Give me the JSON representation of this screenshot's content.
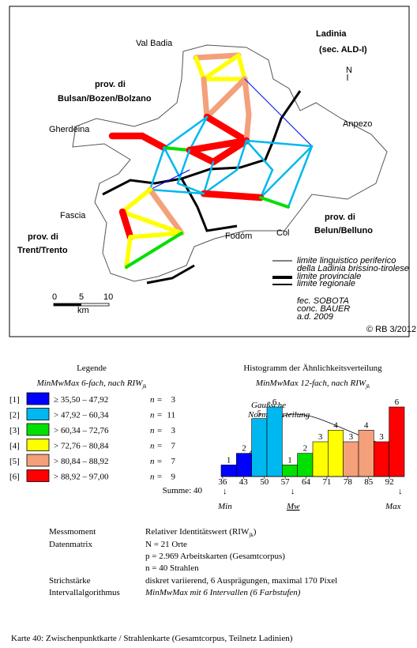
{
  "map": {
    "title": "Ladinia",
    "subtitle": "(sec. ALD-I)",
    "north": "N",
    "places": [
      "Val Badia",
      "Gherdëina",
      "Anpezo",
      "Fascia",
      "Fodóm",
      "Col"
    ],
    "provinces": [
      [
        "prov. di",
        "Bulsan/Bozen/Bolzano"
      ],
      [
        "prov. di",
        "Trent/Trento"
      ],
      [
        "prov. di",
        "Belun/Belluno"
      ]
    ],
    "key": [
      "limite linguistico periferico",
      "della Ladinia brissino-tirolese",
      "limite provinciale",
      "limite regionale"
    ],
    "scale": [
      "0",
      "5",
      "10",
      "km"
    ],
    "credits": [
      "fec. SOBOTA",
      "conc. BAUER",
      "a.d. 2009"
    ],
    "copyright": "© RB 3/2012"
  },
  "legend": {
    "title": "Legende",
    "subtitle": "MinMwMax 6-fach, nach RIW",
    "subtitle_sub": "jk",
    "n_label": "n =",
    "rows": [
      {
        "id": "[1]",
        "color": "#0000ff",
        "range": "≥ 35,50 – 47,92",
        "n": 3
      },
      {
        "id": "[2]",
        "color": "#00b8f0",
        "range": "> 47,92 – 60,34",
        "n": 11
      },
      {
        "id": "[3]",
        "color": "#00e000",
        "range": "> 60,34 – 72,76",
        "n": 3
      },
      {
        "id": "[4]",
        "color": "#ffff00",
        "range": "> 72,76 – 80,84",
        "n": 7
      },
      {
        "id": "[5]",
        "color": "#f4a07a",
        "range": "> 80,84 – 88,92",
        "n": 7
      },
      {
        "id": "[6]",
        "color": "#ff0000",
        "range": "> 88,92 – 97,00",
        "n": 9
      }
    ],
    "sum": "Summe: 40"
  },
  "chart_data": {
    "type": "histogram",
    "title": "Histogramm der Ähnlichkeitsverteilung",
    "subtitle": "MinMwMax 12-fach, nach RIW",
    "subtitle_sub": "jk",
    "bins": [
      35.5,
      40.625,
      45.75,
      50.875,
      56,
      61.125,
      66.25,
      71.375,
      76.5,
      81.625,
      86.75,
      91.875,
      97
    ],
    "values": [
      1,
      2,
      5,
      6,
      1,
      2,
      3,
      4,
      3,
      4,
      3,
      6
    ],
    "colors": [
      "#0000ff",
      "#0000ff",
      "#00b8f0",
      "#00b8f0",
      "#00e000",
      "#00e000",
      "#ffff00",
      "#ffff00",
      "#f4a07a",
      "#f4a07a",
      "#ff0000",
      "#ff0000"
    ],
    "xlim": [
      35.5,
      97
    ],
    "xticks": [
      36,
      43,
      50,
      57,
      64,
      71,
      78,
      85,
      92
    ],
    "curve_label": [
      "Gaußsche",
      "Normalverteilung"
    ],
    "markers": [
      "Min",
      "Mw",
      "Max"
    ]
  },
  "info": {
    "rows": [
      {
        "label": "Messmoment",
        "lines": [
          "Relativer Identitätswert (RIW"
        ],
        "sub": "jk",
        "end": ")"
      },
      {
        "label": "Datenmatrix",
        "lines": [
          "N = 21 Orte",
          "p = 2.969 Arbeitskarten (Gesamtcorpus)",
          "n = 40 Strahlen"
        ]
      },
      {
        "label": "Strichstärke",
        "lines": [
          "diskret variierend, 6 Ausprägungen, maximal 170 Pixel"
        ]
      },
      {
        "label": "Intervallalgorithmus",
        "lines": [
          "MinMwMax mit 6 Intervallen (6 Farbstufen)"
        ]
      }
    ]
  },
  "caption": "Karte 40: Zwischenpunktkarte / Strahlenkarte (Gesamtcorpus, Teilnetz Ladinien)"
}
